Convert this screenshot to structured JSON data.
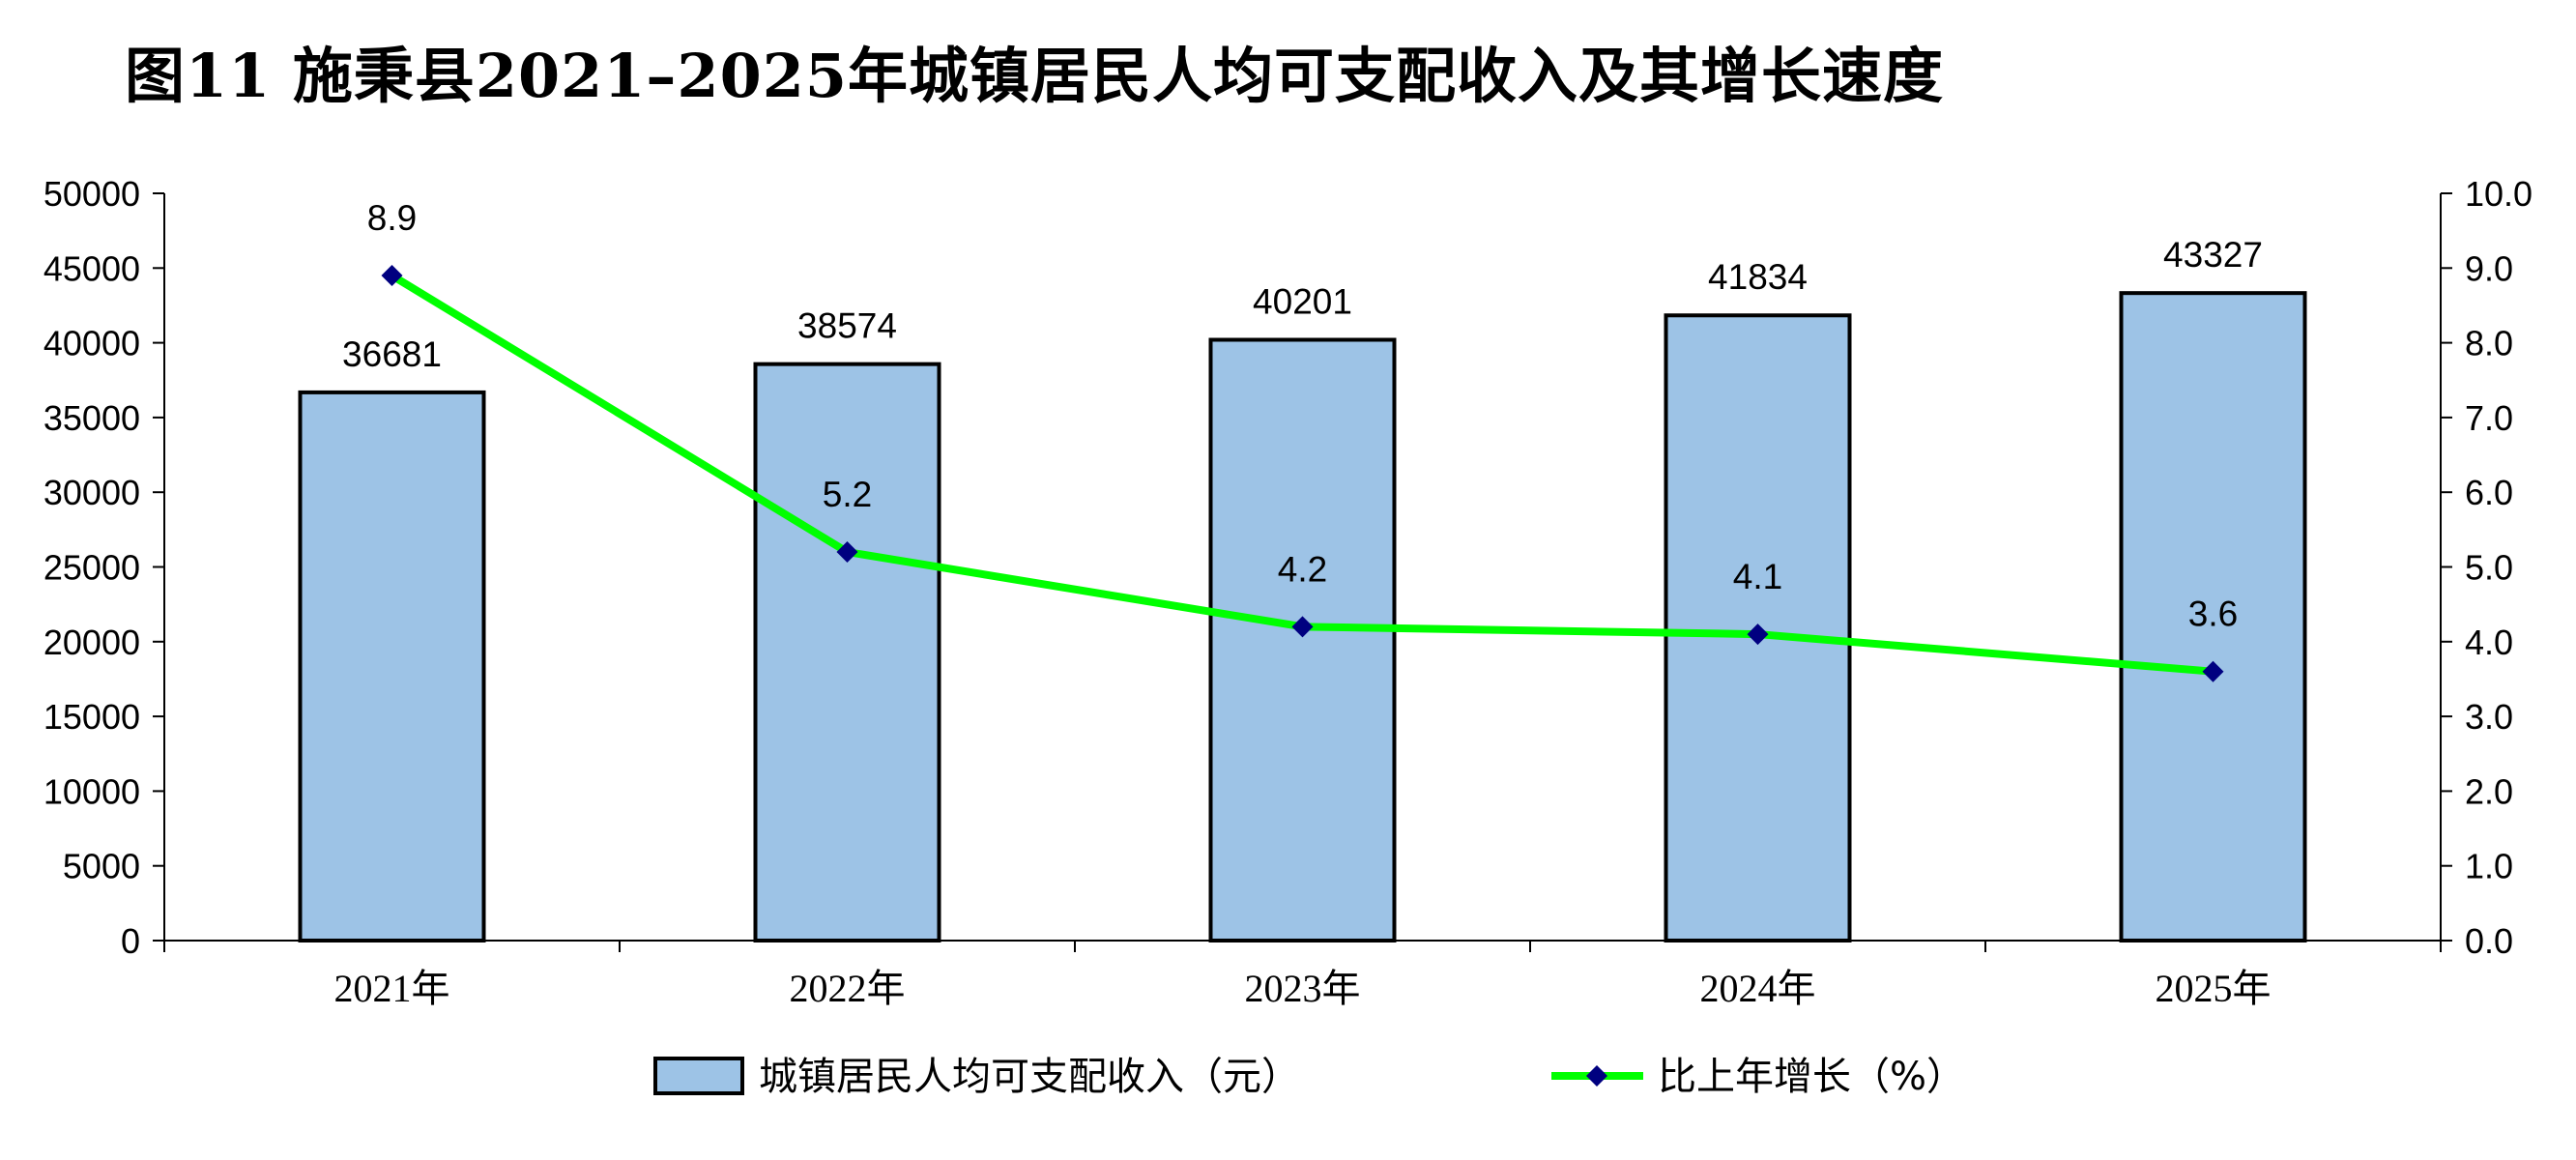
{
  "title": "图11  施秉县2021–2025年城镇居民人均可支配收入及其增长速度",
  "chart_data": {
    "type": "bar",
    "categories": [
      "2021年",
      "2022年",
      "2023年",
      "2024年",
      "2025年"
    ],
    "series": [
      {
        "name": "城镇居民人均可支配收入（元）",
        "type": "bar",
        "axis": "left",
        "values": [
          36681,
          38574,
          40201,
          41834,
          43327
        ],
        "color": "#9DC3E6",
        "labels": [
          "36681",
          "38574",
          "40201",
          "41834",
          "43327"
        ]
      },
      {
        "name": "比上年增长（%）",
        "type": "line",
        "axis": "right",
        "values": [
          8.9,
          5.2,
          4.2,
          4.1,
          3.6
        ],
        "color": "#00FF00",
        "marker_color": "#000080",
        "labels": [
          "8.9",
          "5.2",
          "4.2",
          "4.1",
          "3.6"
        ]
      }
    ],
    "y_left": {
      "ylim": [
        0,
        50000
      ],
      "ticks": [
        "0",
        "5000",
        "10000",
        "15000",
        "20000",
        "25000",
        "30000",
        "35000",
        "40000",
        "45000",
        "50000"
      ]
    },
    "y_right": {
      "ylim": [
        0,
        10
      ],
      "ticks": [
        "0.0",
        "1.0",
        "2.0",
        "3.0",
        "4.0",
        "5.0",
        "6.0",
        "7.0",
        "8.0",
        "9.0",
        "10.0"
      ]
    },
    "grid": false,
    "legend_position": "bottom"
  }
}
